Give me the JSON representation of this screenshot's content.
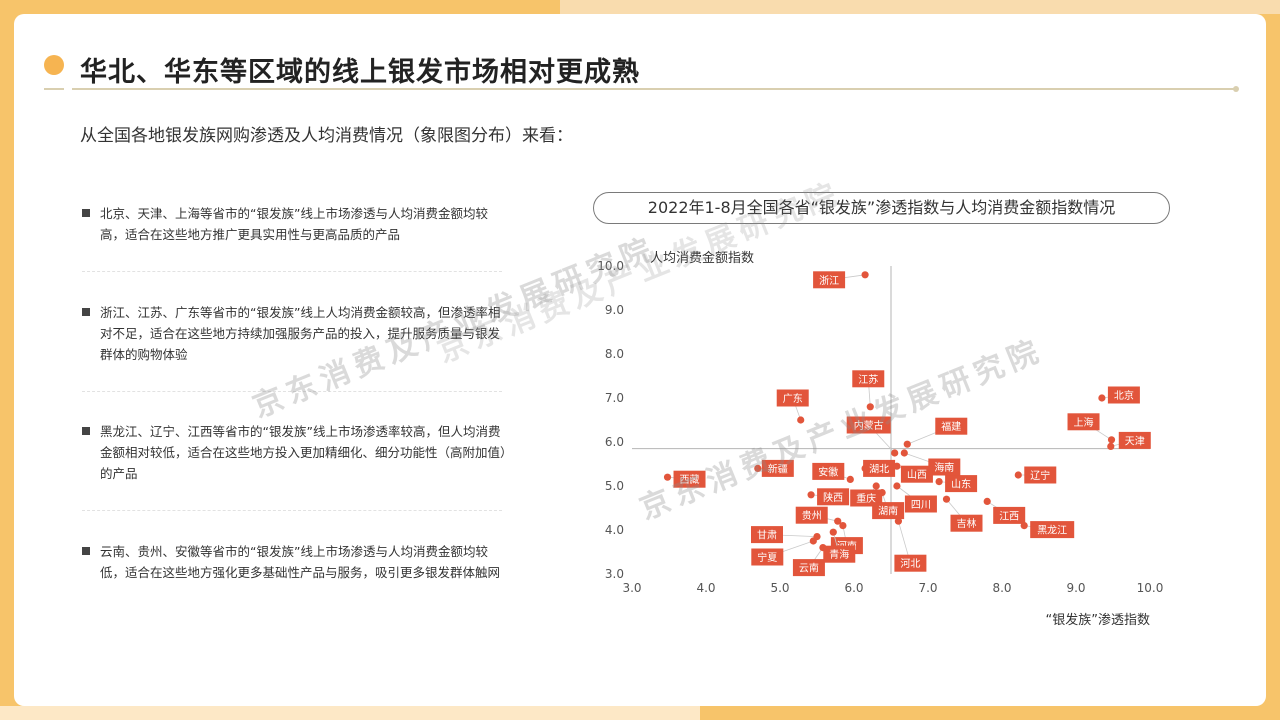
{
  "title": "华北、华东等区域的线上银发市场相对更成熟",
  "subtitle": "从全国各地银发族网购渗透及人均消费情况（象限图分布）来看：",
  "points": [
    {
      "text": "北京、天津、上海等省市的“银发族”线上市场渗透与人均消费金额均较高，适合在这些地方推广更具实用性与更高品质的产品"
    },
    {
      "text": "浙江、江苏、广东等省市的“银发族”线上人均消费金额较高，但渗透率相对不足，适合在这些地方持续加强服务产品的投入，提升服务质量与银发群体的购物体验"
    },
    {
      "text": "黑龙江、辽宁、江西等省市的“银发族”线上市场渗透率较高，但人均消费金额相对较低，适合在这些地方投入更加精细化、细分功能性（高附加值）的产品"
    },
    {
      "text": "云南、贵州、安徽等省市的“银发族”线上市场渗透与人均消费金额均较低，适合在这些地方强化更多基础性产品与服务，吸引更多银发群体触网"
    }
  ],
  "watermarks": [
    "京东消费及产业发展研究院",
    "京东消费及产业发展研究院",
    "京东消费及产业发展研究院"
  ],
  "colors": {
    "accent": "#e2553b",
    "title_dot": "#f6b451",
    "background": "#f7c46a"
  },
  "chart_data": {
    "type": "scatter",
    "title": "2022年1-8月全国各省“银发族”渗透指数与人均消费金额指数情况",
    "xlabel": "“银发族”渗透指数",
    "ylabel": "人均消费金额指数",
    "xlim": [
      3.0,
      10.0
    ],
    "ylim": [
      3.0,
      10.0
    ],
    "xticks": [
      "3.0",
      "4.0",
      "5.0",
      "6.0",
      "7.0",
      "8.0",
      "9.0",
      "10.0"
    ],
    "yticks": [
      "3.0",
      "4.0",
      "5.0",
      "6.0",
      "7.0",
      "8.0",
      "9.0",
      "10.0"
    ],
    "quadrant_x": 6.5,
    "quadrant_y": 5.85,
    "grid": false,
    "points": [
      {
        "name": "浙江",
        "x": 6.15,
        "y": 9.8
      },
      {
        "name": "江苏",
        "x": 6.22,
        "y": 6.8
      },
      {
        "name": "广东",
        "x": 5.28,
        "y": 6.5
      },
      {
        "name": "北京",
        "x": 9.35,
        "y": 7.0
      },
      {
        "name": "上海",
        "x": 9.48,
        "y": 6.05
      },
      {
        "name": "天津",
        "x": 9.47,
        "y": 5.9
      },
      {
        "name": "福建",
        "x": 6.72,
        "y": 5.95
      },
      {
        "name": "内蒙古",
        "x": 6.55,
        "y": 5.75
      },
      {
        "name": "海南",
        "x": 6.68,
        "y": 5.75
      },
      {
        "name": "湖北",
        "x": 6.15,
        "y": 5.4
      },
      {
        "name": "山西",
        "x": 6.58,
        "y": 5.45
      },
      {
        "name": "新疆",
        "x": 4.7,
        "y": 5.4
      },
      {
        "name": "安徽",
        "x": 5.95,
        "y": 5.15
      },
      {
        "name": "西藏",
        "x": 3.48,
        "y": 5.2
      },
      {
        "name": "辽宁",
        "x": 8.22,
        "y": 5.25
      },
      {
        "name": "山东",
        "x": 7.15,
        "y": 5.1
      },
      {
        "name": "陕西",
        "x": 5.42,
        "y": 4.8
      },
      {
        "name": "重庆",
        "x": 6.3,
        "y": 5.0
      },
      {
        "name": "湖南",
        "x": 6.38,
        "y": 4.85
      },
      {
        "name": "四川",
        "x": 6.58,
        "y": 5.0
      },
      {
        "name": "吉林",
        "x": 7.25,
        "y": 4.7
      },
      {
        "name": "江西",
        "x": 7.8,
        "y": 4.65
      },
      {
        "name": "贵州",
        "x": 5.78,
        "y": 4.2
      },
      {
        "name": "河南",
        "x": 5.85,
        "y": 4.1
      },
      {
        "name": "河北",
        "x": 6.6,
        "y": 4.2
      },
      {
        "name": "黑龙江",
        "x": 8.3,
        "y": 4.1
      },
      {
        "name": "甘肃",
        "x": 5.5,
        "y": 3.85
      },
      {
        "name": "宁夏",
        "x": 5.45,
        "y": 3.75
      },
      {
        "name": "云南",
        "x": 5.58,
        "y": 3.6
      },
      {
        "name": "青海",
        "x": 5.72,
        "y": 3.95
      }
    ]
  }
}
